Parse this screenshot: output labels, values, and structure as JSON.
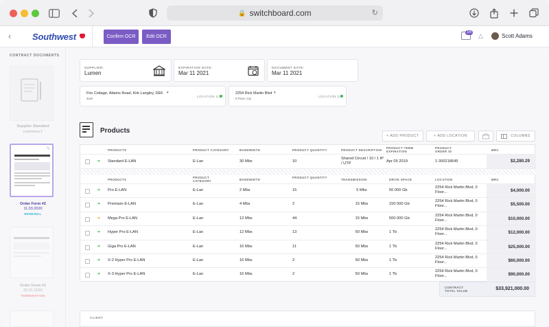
{
  "browser": {
    "url": "switchboard.com"
  },
  "header": {
    "logo": "Southwest",
    "confirm_btn": "Confirm OCR",
    "edit_btn": "Edit OCR",
    "notif_count": "1/4",
    "user_name": "Scott Adams"
  },
  "left_panel": {
    "title": "CONTRACT DOCUMENTS",
    "docs": [
      {
        "caption": "Supplier Standard",
        "sub": "CONTRACT"
      },
      {
        "caption": "Order Form #2",
        "date": "11.03.2020",
        "sub": "RENEWAL"
      },
      {
        "caption": "Order Form #1",
        "date": "05.01.2020",
        "sub": "TERMINATION"
      }
    ]
  },
  "fields": {
    "supplier_label": "SUPPLIER:",
    "supplier": "Lumen",
    "expiration_label": "EXPIRATION DATE:",
    "expiration": "Mar 11 2021",
    "document_label": "DOCUMENT DATE:",
    "document": "Mar 11 2021"
  },
  "locations": [
    {
      "text": "Firs Cottage, Adams Road, Kirk Langley, DE6",
      "sub": "4LW",
      "tag": "LOCATION 1/2"
    },
    {
      "text": "2254 Rick Martin Blvd",
      "sub": "0 Floor, Cty",
      "tag": "LOCATION 2/2"
    }
  ],
  "products": {
    "title": "Products",
    "add_product": "+ ADD PRODUCT",
    "add_location": "+ ADD LOCATION",
    "columns": "COLUMNS"
  },
  "table1": {
    "headers": [
      "PRODUCTS",
      "PRODUCT CATEGORY",
      "BANDWIDTH",
      "PRODUCT QUANTITY",
      "PRODUCT DESCRIPTION",
      "PRODUCT TERM EXPIRATION",
      "PRODUCT ORDER ID",
      "MRC"
    ],
    "row": {
      "product": "Standard E-LAN",
      "category": "E-Lan",
      "bandwidth": "30 Mbs",
      "quantity": "10",
      "description": "Shared Circuit / 10 / 1 IP / UTP",
      "expiration": "Apr 05 2019",
      "order_id": "1-300218645",
      "mrc": "$2,280.29"
    }
  },
  "table2": {
    "headers": [
      "PRODUCTS",
      "PRODUCT CATEGORY",
      "BANDWIDTH",
      "PRODUCT QUANTITY",
      "TRANSMISSION",
      "DRIVE SPACE",
      "LOCATION",
      "MRC"
    ],
    "rows": [
      {
        "product": "Pro E-LAN",
        "category": "E-Lan",
        "bandwidth": "2 Mbs",
        "quantity": "15",
        "transmission": "5 Mbs",
        "drive": "50 000 Gb",
        "location": "2254 Rick Martin Blvd, 0 Floor...",
        "mrc": "$4,000.00",
        "arrow": "green"
      },
      {
        "product": "Premium E-LAN",
        "category": "E-Lan",
        "bandwidth": "4 Mbs",
        "quantity": "2",
        "transmission": "15 Mbs",
        "drive": "150 000 Gb",
        "location": "2254 Rick Martin Blvd, 0 Floor...",
        "mrc": "$5,500.00",
        "arrow": "green"
      },
      {
        "product": "Mega Pro E-LAN",
        "category": "E-Lan",
        "bandwidth": "12 Mbs",
        "quantity": "44",
        "transmission": "15 Mbs",
        "drive": "500 000 Gb",
        "location": "2254 Rick Martin Blvd, 0 Floor...",
        "mrc": "$10,000.00",
        "arrow": "orange"
      },
      {
        "product": "Hyper Pro E-LAN",
        "category": "E-Lan",
        "bandwidth": "12 Mbs",
        "quantity": "13",
        "transmission": "50 Mbs",
        "drive": "1 Tb",
        "location": "2254 Rick Martin Blvd, 0 Floor...",
        "mrc": "$12,000.00",
        "arrow": "green"
      },
      {
        "product": "Giga Pro E-LAN",
        "category": "E-Lan",
        "bandwidth": "16 Mbs",
        "quantity": "11",
        "transmission": "50 Mbs",
        "drive": "1 Tb",
        "location": "2254 Rick Martin Blvd, 0 Floor...",
        "mrc": "$25,000.00",
        "arrow": "green"
      },
      {
        "product": "X-2 Hyper Pro E-LAN",
        "category": "E-Lan",
        "bandwidth": "16 Mbs",
        "quantity": "2",
        "transmission": "50 Mbs",
        "drive": "1 Tb",
        "location": "2254 Rick Martin Blvd, 0 Floor...",
        "mrc": "$60,000.00",
        "arrow": "green"
      },
      {
        "product": "X-3 Hyper Pro E-LAN",
        "category": "E-Lan",
        "bandwidth": "16 Mbs",
        "quantity": "2",
        "transmission": "50 Mbs",
        "drive": "1 Tb",
        "location": "2254 Rick Martin Blvd, 0 Floor...",
        "mrc": "$90,000.00",
        "arrow": "green"
      }
    ]
  },
  "total": {
    "label": "CONTRACT TOTAL VALUE",
    "value": "$33,921,000.00"
  },
  "client_label": "CLIENT",
  "colors": {
    "accent": "#7b5cc4",
    "green": "#3bba5a",
    "orange": "#f0a030",
    "brand": "#304cb2"
  }
}
